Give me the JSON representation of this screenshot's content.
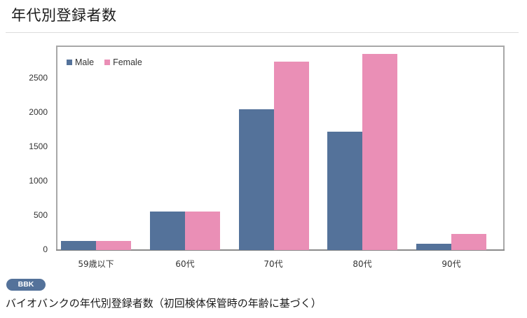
{
  "header": {
    "title": "年代別登録者数"
  },
  "badge": {
    "label": "BBK"
  },
  "caption": "バイオバンクの年代別登録者数（初回検体保管時の年齢に基づく）",
  "colors": {
    "male": "#54729a",
    "female": "#ea8fb6",
    "axis": "#8a8a8a",
    "frame": "#a8a8a8",
    "badge_bg": "#54729a"
  },
  "legend": {
    "items": [
      {
        "label": "Male",
        "color": "#54729a"
      },
      {
        "label": "Female",
        "color": "#ea8fb6"
      }
    ]
  },
  "y_ticks": [
    "0",
    "500",
    "1000",
    "1500",
    "2000",
    "2500"
  ],
  "chart_data": {
    "type": "bar",
    "title": "年代別登録者数",
    "xlabel": "",
    "ylabel": "",
    "categories": [
      "59歳以下",
      "60代",
      "70代",
      "80代",
      "90代"
    ],
    "series": [
      {
        "name": "Male",
        "color": "#54729a",
        "values": [
          135,
          560,
          2040,
          1715,
          95
        ]
      },
      {
        "name": "Female",
        "color": "#ea8fb6",
        "values": [
          135,
          560,
          2735,
          2845,
          235
        ]
      }
    ],
    "ylim": [
      0,
      2950
    ],
    "yticks": [
      0,
      500,
      1000,
      1500,
      2000,
      2500
    ],
    "grid": false,
    "legend_position": "top-left inside"
  }
}
